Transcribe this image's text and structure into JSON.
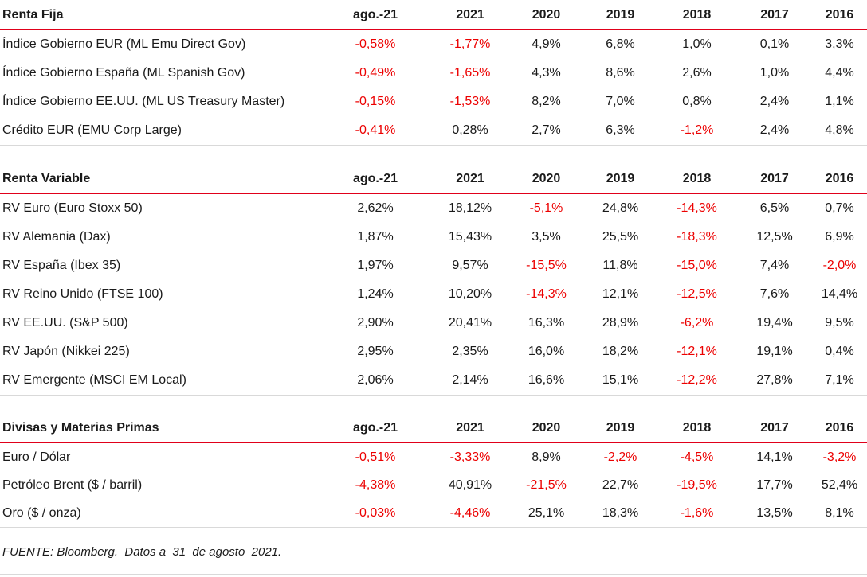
{
  "columns": [
    "ago.-21",
    "2021",
    "2020",
    "2019",
    "2018",
    "2017",
    "2016"
  ],
  "colors": {
    "negative": "#ec0000",
    "header_rule": "#e0001a",
    "text": "#1a1a1a"
  },
  "sections": [
    {
      "title": "Renta Fija",
      "rows": [
        {
          "label": "Índice Gobierno EUR (ML Emu Direct Gov)",
          "values": [
            "-0,58%",
            "-1,77%",
            "4,9%",
            "6,8%",
            "1,0%",
            "0,1%",
            "3,3%"
          ]
        },
        {
          "label": "Índice Gobierno España (ML Spanish Gov)",
          "values": [
            "-0,49%",
            "-1,65%",
            "4,3%",
            "8,6%",
            "2,6%",
            "1,0%",
            "4,4%"
          ]
        },
        {
          "label": "Índice Gobierno EE.UU. (ML US Treasury Master)",
          "values": [
            "-0,15%",
            "-1,53%",
            "8,2%",
            "7,0%",
            "0,8%",
            "2,4%",
            "1,1%"
          ]
        },
        {
          "label": "Crédito EUR (EMU Corp Large)",
          "values": [
            "-0,41%",
            "0,28%",
            "2,7%",
            "6,3%",
            "-1,2%",
            "2,4%",
            "4,8%"
          ]
        }
      ]
    },
    {
      "title": "Renta Variable",
      "rows": [
        {
          "label": "RV Euro (Euro Stoxx 50)",
          "values": [
            "2,62%",
            "18,12%",
            "-5,1%",
            "24,8%",
            "-14,3%",
            "6,5%",
            "0,7%"
          ]
        },
        {
          "label": "RV Alemania (Dax)",
          "values": [
            "1,87%",
            "15,43%",
            "3,5%",
            "25,5%",
            "-18,3%",
            "12,5%",
            "6,9%"
          ]
        },
        {
          "label": "RV España (Ibex 35)",
          "values": [
            "1,97%",
            "9,57%",
            "-15,5%",
            "11,8%",
            "-15,0%",
            "7,4%",
            "-2,0%"
          ]
        },
        {
          "label": "RV Reino Unido (FTSE 100)",
          "values": [
            "1,24%",
            "10,20%",
            "-14,3%",
            "12,1%",
            "-12,5%",
            "7,6%",
            "14,4%"
          ]
        },
        {
          "label": "RV EE.UU. (S&P 500)",
          "values": [
            "2,90%",
            "20,41%",
            "16,3%",
            "28,9%",
            "-6,2%",
            "19,4%",
            "9,5%"
          ]
        },
        {
          "label": "RV Japón (Nikkei 225)",
          "values": [
            "2,95%",
            "2,35%",
            "16,0%",
            "18,2%",
            "-12,1%",
            "19,1%",
            "0,4%"
          ]
        },
        {
          "label": "RV Emergente (MSCI EM Local)",
          "values": [
            "2,06%",
            "2,14%",
            "16,6%",
            "15,1%",
            "-12,2%",
            "27,8%",
            "7,1%"
          ]
        }
      ]
    },
    {
      "title": "Divisas y Materias Primas",
      "rows": [
        {
          "label": "Euro / Dólar",
          "values": [
            "-0,51%",
            "-3,33%",
            "8,9%",
            "-2,2%",
            "-4,5%",
            "14,1%",
            "-3,2%"
          ]
        },
        {
          "label": "Petróleo Brent ($ / barril)",
          "values": [
            "-4,38%",
            "40,91%",
            "-21,5%",
            "22,7%",
            "-19,5%",
            "17,7%",
            "52,4%"
          ]
        },
        {
          "label": "Oro ($ / onza)",
          "values": [
            "-0,03%",
            "-4,46%",
            "25,1%",
            "18,3%",
            "-1,6%",
            "13,5%",
            "8,1%"
          ]
        }
      ]
    }
  ],
  "source_note": "FUENTE: Bloomberg.  Datos a  31  de agosto  2021."
}
